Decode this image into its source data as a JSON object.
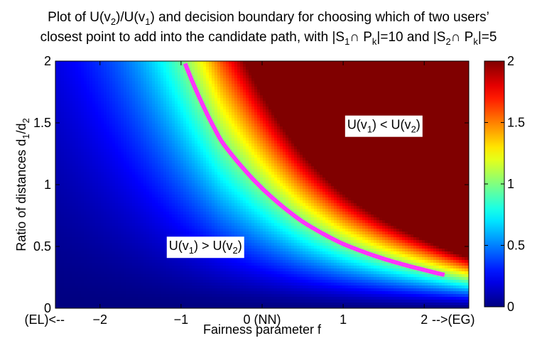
{
  "title": {
    "line1": [
      {
        "t": "Plot of U(v"
      },
      {
        "t": "2",
        "sub": true
      },
      {
        "t": ")/U(v"
      },
      {
        "t": "1",
        "sub": true
      },
      {
        "t": ") and decision boundary for choosing which of two users’"
      }
    ],
    "line2": [
      {
        "t": "closest point to add into the candidate path, with |S"
      },
      {
        "t": "1",
        "sub": true
      },
      {
        "t": "∩ P"
      },
      {
        "t": "k",
        "sub": true
      },
      {
        "t": "|=10 and |S"
      },
      {
        "t": "2",
        "sub": true
      },
      {
        "t": "∩ P"
      },
      {
        "t": "k",
        "sub": true
      },
      {
        "t": "|=5"
      }
    ]
  },
  "chart_data": {
    "type": "heatmap",
    "xlabel": "Fairness parameter f",
    "ylabel": [
      {
        "t": "Ratio of distances d"
      },
      {
        "t": "1",
        "sub": true
      },
      {
        "t": "/d"
      },
      {
        "t": "2",
        "sub": true
      }
    ],
    "xlim": [
      -2.55,
      2.55
    ],
    "ylim": [
      0,
      2
    ],
    "x_ticks": [
      {
        "value": -2.55,
        "label": "(EL)<--"
      },
      {
        "value": -2,
        "label": "−2"
      },
      {
        "value": -1,
        "label": "−1"
      },
      {
        "value": 0,
        "label": "0 (NN)"
      },
      {
        "value": 1,
        "label": "1"
      },
      {
        "value": 2,
        "label": "2"
      },
      {
        "value": 2.55,
        "label": "-->(EG)"
      }
    ],
    "y_ticks": [
      {
        "value": 0,
        "label": "0"
      },
      {
        "value": 0.5,
        "label": "0.5"
      },
      {
        "value": 1,
        "label": "1"
      },
      {
        "value": 1.5,
        "label": "1.5"
      },
      {
        "value": 2,
        "label": "2"
      }
    ],
    "colorbar": {
      "colormap": "jet",
      "range": [
        0,
        2
      ],
      "ticks": [
        {
          "value": 0,
          "label": "0"
        },
        {
          "value": 0.5,
          "label": "0.5"
        },
        {
          "value": 1,
          "label": "1"
        },
        {
          "value": 1.5,
          "label": "1.5"
        },
        {
          "value": 2,
          "label": "2"
        }
      ]
    },
    "color_value": "U(v2)/U(v1), clipped to [0, 2]",
    "decision_boundary": {
      "color": "#ff33ff",
      "points": [
        {
          "x": -0.95,
          "y": 1.98
        },
        {
          "x": -0.5,
          "y": 1.35
        },
        {
          "x": 0,
          "y": 0.97
        },
        {
          "x": 0.5,
          "y": 0.7
        },
        {
          "x": 1,
          "y": 0.52
        },
        {
          "x": 1.5,
          "y": 0.4
        },
        {
          "x": 2,
          "y": 0.31
        },
        {
          "x": 2.25,
          "y": 0.27
        }
      ]
    },
    "annotations": [
      {
        "x": -1.15,
        "y": 0.47,
        "text": [
          {
            "t": "U(v"
          },
          {
            "t": "1",
            "sub": true
          },
          {
            "t": ") > U(v"
          },
          {
            "t": "2",
            "sub": true
          },
          {
            "t": ")"
          }
        ]
      },
      {
        "x": 1.05,
        "y": 1.45,
        "text": [
          {
            "t": "U(v"
          },
          {
            "t": "1",
            "sub": true
          },
          {
            "t": ") < U(v"
          },
          {
            "t": "2",
            "sub": true
          },
          {
            "t": ")"
          }
        ]
      }
    ]
  }
}
